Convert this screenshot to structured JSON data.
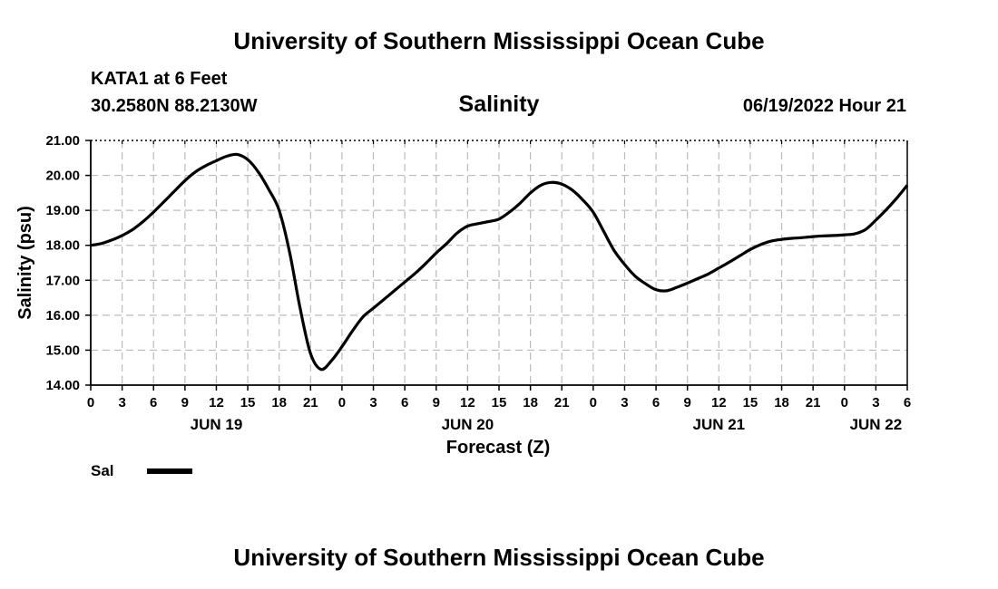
{
  "header": {
    "title": "University of Southern Mississippi Ocean Cube",
    "station": "KATA1 at 6 Feet",
    "coords": "30.2580N  88.2130W",
    "datetime": "06/19/2022 Hour 21"
  },
  "footer": {
    "title": "University of Southern Mississippi Ocean Cube"
  },
  "chart_data": {
    "type": "line",
    "title": "Salinity",
    "xlabel": "Forecast (Z)",
    "ylabel": "Salinity (psu)",
    "ylim": [
      14,
      21
    ],
    "y_ticks": [
      "14.00",
      "15.00",
      "16.00",
      "17.00",
      "18.00",
      "19.00",
      "20.00",
      "21.00"
    ],
    "x_range_hours": [
      0,
      78
    ],
    "x_ticks": [
      "0",
      "3",
      "6",
      "9",
      "12",
      "15",
      "18",
      "21",
      "0",
      "3",
      "6",
      "9",
      "12",
      "15",
      "18",
      "21",
      "0",
      "3",
      "6",
      "9",
      "12",
      "15",
      "18",
      "21",
      "0",
      "3",
      "6"
    ],
    "day_labels": [
      {
        "label": "JUN 19",
        "hour": 12
      },
      {
        "label": "JUN 20",
        "hour": 36
      },
      {
        "label": "JUN 21",
        "hour": 60
      },
      {
        "label": "JUN 22",
        "hour": 75
      }
    ],
    "grid": true,
    "legend_position": "bottom-left",
    "series": [
      {
        "name": "Sal",
        "color": "#000000",
        "x": [
          0,
          1,
          2,
          3,
          4,
          5,
          6,
          7,
          8,
          9,
          10,
          11,
          12,
          13,
          14,
          15,
          16,
          17,
          18,
          19,
          20,
          21,
          22,
          23,
          24,
          25,
          26,
          27,
          28,
          29,
          30,
          31,
          32,
          33,
          34,
          35,
          36,
          37,
          38,
          39,
          40,
          41,
          42,
          43,
          44,
          45,
          46,
          47,
          48,
          49,
          50,
          51,
          52,
          53,
          54,
          55,
          56,
          57,
          58,
          59,
          60,
          61,
          62,
          63,
          64,
          65,
          66,
          67,
          68,
          69,
          70,
          71,
          72,
          73,
          74,
          75,
          76,
          77,
          78
        ],
        "y": [
          18.0,
          18.05,
          18.15,
          18.28,
          18.45,
          18.68,
          18.95,
          19.25,
          19.55,
          19.85,
          20.1,
          20.28,
          20.42,
          20.55,
          20.6,
          20.45,
          20.1,
          19.6,
          19.0,
          17.8,
          16.2,
          14.9,
          14.45,
          14.7,
          15.1,
          15.55,
          15.95,
          16.2,
          16.45,
          16.7,
          16.95,
          17.2,
          17.48,
          17.78,
          18.05,
          18.35,
          18.55,
          18.62,
          18.68,
          18.75,
          18.95,
          19.2,
          19.5,
          19.72,
          19.8,
          19.75,
          19.58,
          19.3,
          18.95,
          18.4,
          17.85,
          17.45,
          17.12,
          16.9,
          16.73,
          16.7,
          16.8,
          16.92,
          17.05,
          17.18,
          17.35,
          17.52,
          17.7,
          17.88,
          18.02,
          18.12,
          18.17,
          18.2,
          18.22,
          18.25,
          18.27,
          18.28,
          18.3,
          18.33,
          18.45,
          18.72,
          19.02,
          19.35,
          19.72
        ]
      }
    ]
  }
}
